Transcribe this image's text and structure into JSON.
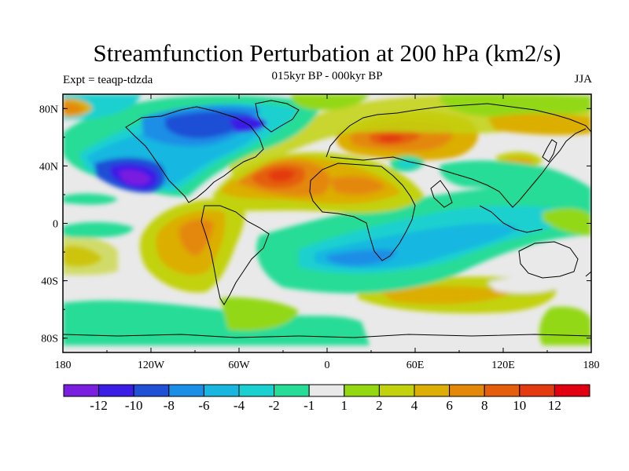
{
  "title": "Streamfunction Perturbation at 200 hPa (km2/s)",
  "subtitle": "015kyr BP - 000kyr BP",
  "experiment": "Expt = teaqp-tdzda",
  "season": "JJA",
  "chart_data": {
    "type": "heatmap",
    "projection": "cylindrical equidistant",
    "variable": "200 hPa streamfunction perturbation",
    "units": "km2/s",
    "lon_ticks": [
      "180",
      "120W",
      "60W",
      "0",
      "60E",
      "120E",
      "180"
    ],
    "lat_ticks": [
      "80N",
      "40N",
      "0",
      "40S",
      "80S"
    ],
    "lon_range": [
      -180,
      180
    ],
    "lat_range": [
      -90,
      90
    ],
    "colorbar_levels": [
      "-12",
      "-10",
      "-8",
      "-6",
      "-4",
      "-2",
      "-1",
      "1",
      "2",
      "4",
      "6",
      "8",
      "10",
      "12"
    ],
    "colorbar_colors": [
      "#7a1ee0",
      "#3a1ee6",
      "#1f50d6",
      "#1b8ee6",
      "#19b7e0",
      "#1ad0d0",
      "#27dc96",
      "#e9e9e9",
      "#93d812",
      "#c2d20c",
      "#dcae06",
      "#e4880a",
      "#e45e0e",
      "#e33a10",
      "#e1000f"
    ]
  }
}
